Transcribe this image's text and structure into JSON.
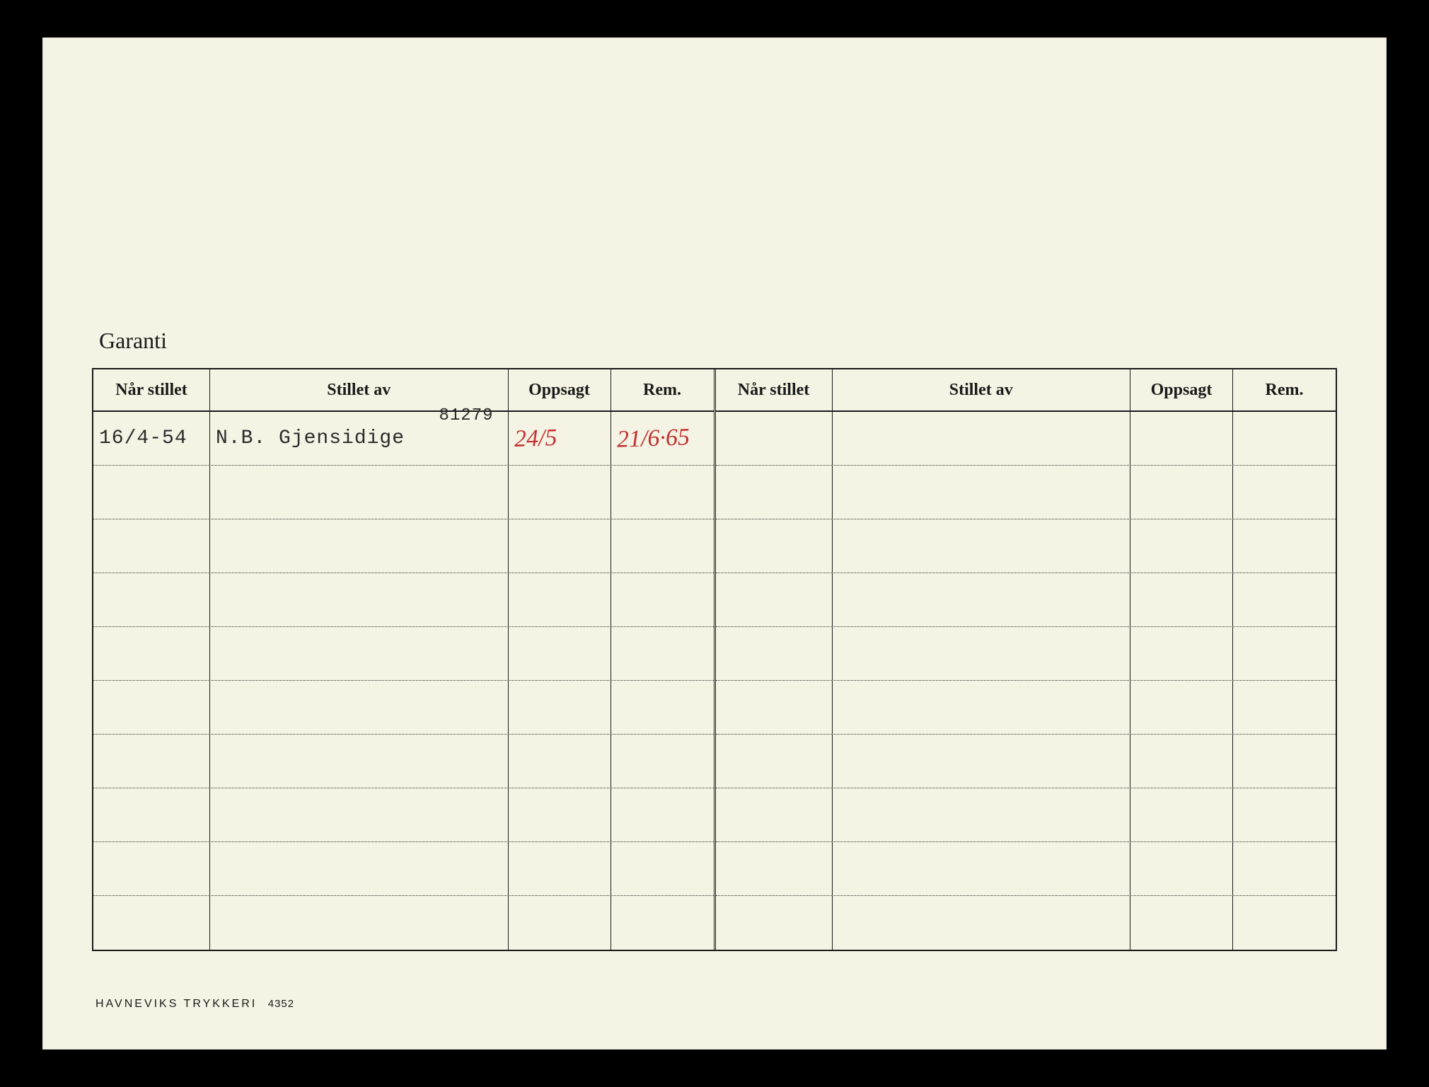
{
  "document": {
    "background_color": "#f5f3e3",
    "border_color": "#000000",
    "section_title": "Garanti",
    "footer_printer": "HAVNEVIKS TRYKKERI",
    "footer_number": "4352"
  },
  "table": {
    "columns": {
      "nar_stillet": "Når stillet",
      "stillet_av": "Stillet av",
      "oppsagt": "Oppsagt",
      "rem": "Rem."
    },
    "column_widths": {
      "nar_stillet": 165,
      "stillet_av": "flex",
      "oppsagt": 145,
      "rem": 145
    },
    "row_count": 10,
    "entries": [
      {
        "nar_stillet": "16/4-54",
        "stillet_av": "N.B. Gjensidige",
        "stillet_av_number": "81279",
        "oppsagt": "24/5",
        "rem": "21/6·65"
      }
    ],
    "text_colors": {
      "typed": "#2a2a2a",
      "handwritten": "#c23030",
      "printed": "#1a1a1a"
    }
  }
}
